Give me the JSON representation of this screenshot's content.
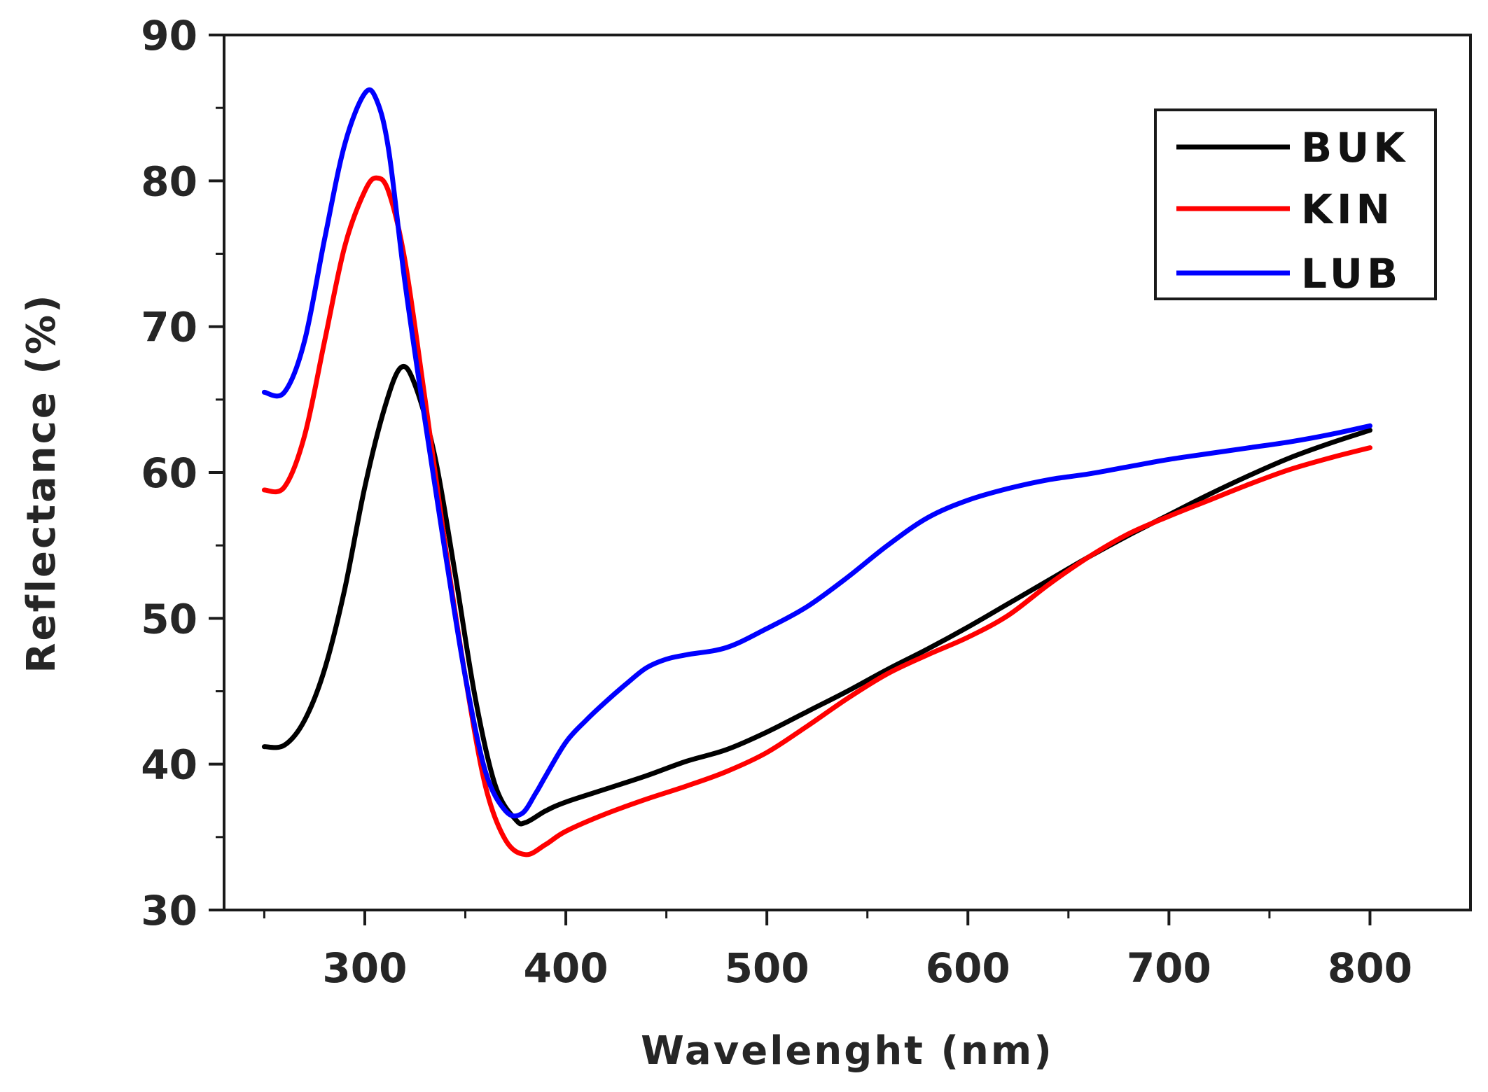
{
  "chart_data": {
    "type": "line",
    "title": "",
    "xlabel": "Wavelenght (nm)",
    "ylabel": "Reflectance (%)",
    "xlim": [
      230,
      850
    ],
    "ylim": [
      30,
      90
    ],
    "xticks": [
      300,
      400,
      500,
      600,
      700,
      800
    ],
    "yticks": [
      30,
      40,
      50,
      60,
      70,
      80,
      90
    ],
    "legend_position": "top-right",
    "grid": false,
    "series": [
      {
        "name": "BUK",
        "color": "#000000",
        "x": [
          250,
          260,
          270,
          280,
          290,
          300,
          310,
          318,
          325,
          335,
          345,
          355,
          365,
          375,
          380,
          390,
          400,
          420,
          440,
          460,
          480,
          500,
          520,
          540,
          560,
          580,
          600,
          620,
          640,
          660,
          680,
          700,
          720,
          740,
          760,
          780,
          800
        ],
        "y": [
          41.2,
          41.3,
          43,
          46.5,
          52,
          59,
          64.5,
          67.2,
          66,
          61,
          53,
          44.5,
          38.5,
          36.2,
          36,
          36.8,
          37.4,
          38.3,
          39.2,
          40.2,
          41,
          42.2,
          43.6,
          45,
          46.5,
          47.9,
          49.4,
          51,
          52.6,
          54.2,
          55.7,
          57.1,
          58.5,
          59.8,
          61,
          62,
          62.9
        ]
      },
      {
        "name": "KIN",
        "color": "#ff0000",
        "x": [
          250,
          260,
          270,
          280,
          290,
          300,
          306,
          312,
          320,
          330,
          340,
          350,
          360,
          370,
          380,
          390,
          400,
          420,
          440,
          460,
          480,
          500,
          520,
          540,
          560,
          580,
          600,
          620,
          640,
          660,
          680,
          700,
          720,
          740,
          760,
          780,
          800
        ],
        "y": [
          58.8,
          59,
          62.5,
          69,
          75.5,
          79.3,
          80.2,
          79.2,
          74.5,
          65,
          55,
          46,
          38.5,
          34.8,
          33.8,
          34.5,
          35.4,
          36.6,
          37.6,
          38.5,
          39.5,
          40.8,
          42.6,
          44.5,
          46.2,
          47.5,
          48.7,
          50.2,
          52.3,
          54.2,
          55.8,
          57,
          58.1,
          59.2,
          60.2,
          61,
          61.7
        ]
      },
      {
        "name": "LUB",
        "color": "#0000ff",
        "x": [
          250,
          260,
          270,
          280,
          290,
          300,
          306,
          312,
          320,
          330,
          340,
          350,
          360,
          370,
          378,
          385,
          390,
          400,
          410,
          420,
          430,
          440,
          450,
          460,
          480,
          500,
          520,
          540,
          560,
          580,
          600,
          620,
          640,
          660,
          680,
          700,
          720,
          740,
          760,
          780,
          800
        ],
        "y": [
          65.5,
          65.5,
          69,
          76,
          82.5,
          86,
          85.5,
          82,
          73,
          63.5,
          54.5,
          46,
          39.5,
          36.8,
          36.6,
          38,
          39.2,
          41.5,
          43,
          44.3,
          45.5,
          46.6,
          47.2,
          47.5,
          48,
          49.3,
          50.8,
          52.8,
          55,
          56.9,
          58.1,
          58.9,
          59.5,
          59.9,
          60.4,
          60.9,
          61.3,
          61.7,
          62.1,
          62.6,
          63.2
        ]
      }
    ]
  }
}
